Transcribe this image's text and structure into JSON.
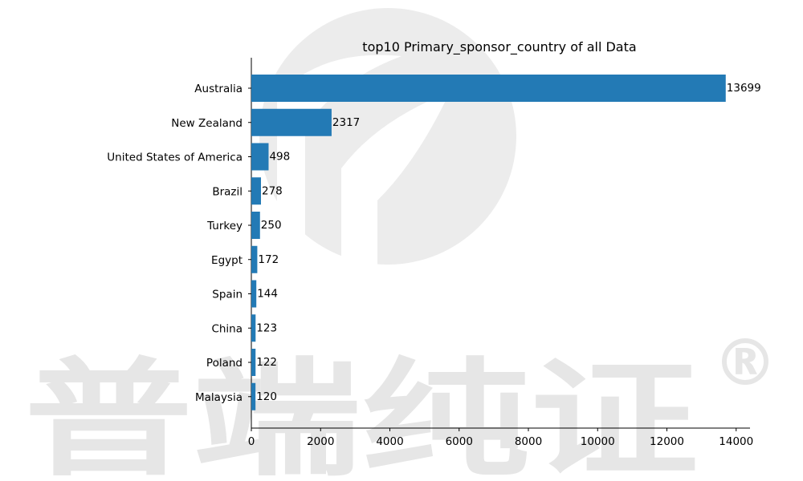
{
  "watermark": {
    "text": "普端纯证",
    "mark": "®",
    "color": "#e8e8e8"
  },
  "chart_data": {
    "type": "bar",
    "orientation": "horizontal",
    "title": "top10 Primary_sponsor_country of all Data",
    "xlabel": "",
    "ylabel": "",
    "categories": [
      "Australia",
      "New Zealand",
      "United States of America",
      "Brazil",
      "Turkey",
      "Egypt",
      "Spain",
      "China",
      "Poland",
      "Malaysia"
    ],
    "values": [
      13699,
      2317,
      498,
      278,
      250,
      172,
      144,
      123,
      122,
      120
    ],
    "data_labels": [
      "13699",
      "2317",
      "498",
      "278",
      "250",
      "172",
      "144",
      "123",
      "122",
      "120"
    ],
    "xlim": [
      0,
      14400
    ],
    "xticks": [
      0,
      2000,
      4000,
      6000,
      8000,
      10000,
      12000,
      14000
    ],
    "xtick_labels": [
      "0",
      "2000",
      "4000",
      "6000",
      "8000",
      "10000",
      "12000",
      "14000"
    ],
    "bar_color": "#1f77b4",
    "grid": false,
    "legend": "none"
  }
}
